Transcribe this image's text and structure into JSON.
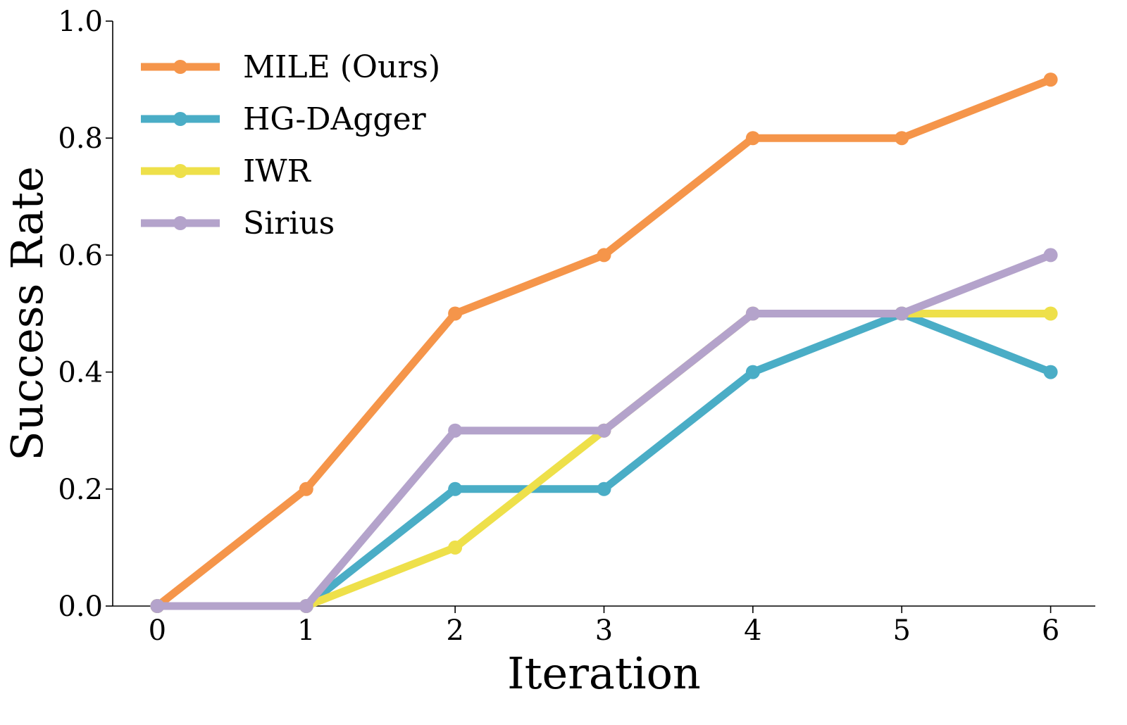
{
  "chart_data": {
    "type": "line",
    "title": "",
    "xlabel": "Iteration",
    "ylabel": "Success Rate",
    "xlim": [
      -0.3,
      6.3
    ],
    "ylim": [
      0.0,
      1.0
    ],
    "xticks": [
      0,
      1,
      2,
      3,
      4,
      5,
      6
    ],
    "xtick_labels": [
      "0",
      "1",
      "2",
      "3",
      "4",
      "5",
      "6"
    ],
    "yticks": [
      0.0,
      0.2,
      0.4,
      0.6,
      0.8,
      1.0
    ],
    "ytick_labels": [
      "0.0",
      "0.2",
      "0.4",
      "0.6",
      "0.8",
      "1.0"
    ],
    "grid": false,
    "legend_position": "top-left",
    "x": [
      0,
      1,
      2,
      3,
      4,
      5,
      6
    ],
    "series": [
      {
        "name": "MILE (Ours)",
        "color": "#F5954A",
        "values": [
          0.0,
          0.2,
          0.5,
          0.6,
          0.8,
          0.8,
          0.9
        ]
      },
      {
        "name": "HG-DAgger",
        "color": "#4AADC6",
        "values": [
          0.0,
          0.0,
          0.2,
          0.2,
          0.4,
          0.5,
          0.4
        ]
      },
      {
        "name": "IWR",
        "color": "#EEE04A",
        "values": [
          0.0,
          0.0,
          0.1,
          0.3,
          0.5,
          0.5,
          0.5
        ]
      },
      {
        "name": "Sirius",
        "color": "#B4A3CB",
        "values": [
          0.0,
          0.0,
          0.3,
          0.3,
          0.5,
          0.5,
          0.6
        ]
      }
    ]
  }
}
